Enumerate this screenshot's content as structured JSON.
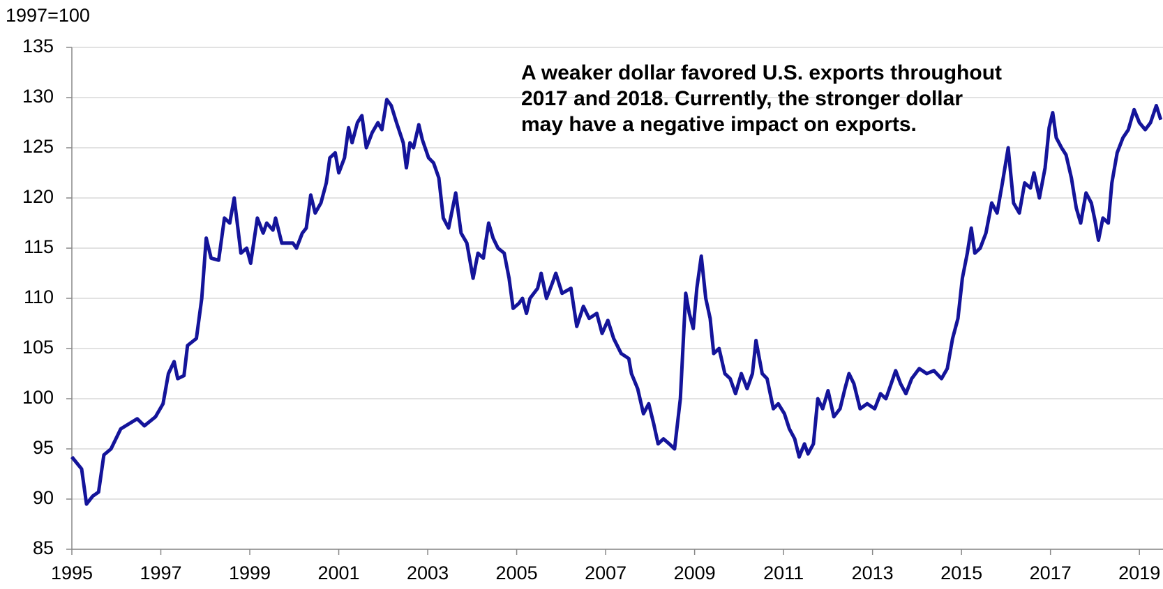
{
  "chart_data": {
    "type": "line",
    "y_axis_label": "1997=100",
    "annotation": "A weaker dollar favored U.S. exports throughout 2017 and 2018. Currently, the stronger dollar may have a negative impact on exports.",
    "color": "#14149a",
    "grid": true,
    "xlim": [
      1995,
      2019.53
    ],
    "ylim": [
      85,
      135
    ],
    "xticks": [
      1995,
      1997,
      1999,
      2001,
      2003,
      2005,
      2007,
      2009,
      2011,
      2013,
      2015,
      2017,
      2019
    ],
    "yticks": [
      85,
      90,
      95,
      100,
      105,
      110,
      115,
      120,
      125,
      130,
      135
    ],
    "x": [
      1995.0,
      1995.22,
      1995.33,
      1995.47,
      1995.6,
      1995.72,
      1995.88,
      1996.1,
      1996.47,
      1996.63,
      1996.88,
      1997.05,
      1997.17,
      1997.3,
      1997.38,
      1997.52,
      1997.6,
      1997.8,
      1997.92,
      1998.02,
      1998.13,
      1998.3,
      1998.43,
      1998.55,
      1998.65,
      1998.8,
      1998.93,
      1999.02,
      1999.17,
      1999.3,
      1999.38,
      1999.52,
      1999.58,
      1999.72,
      1999.97,
      2000.05,
      2000.18,
      2000.27,
      2000.37,
      2000.47,
      2000.6,
      2000.72,
      2000.8,
      2000.92,
      2001.0,
      2001.13,
      2001.22,
      2001.3,
      2001.42,
      2001.52,
      2001.62,
      2001.75,
      2001.88,
      2001.97,
      2002.08,
      2002.18,
      2002.3,
      2002.45,
      2002.52,
      2002.6,
      2002.68,
      2002.8,
      2002.88,
      2003.02,
      2003.13,
      2003.25,
      2003.35,
      2003.47,
      2003.63,
      2003.75,
      2003.88,
      2004.02,
      2004.13,
      2004.25,
      2004.37,
      2004.47,
      2004.58,
      2004.72,
      2004.83,
      2004.92,
      2005.05,
      2005.13,
      2005.22,
      2005.3,
      2005.47,
      2005.55,
      2005.67,
      2005.8,
      2005.88,
      2006.02,
      2006.22,
      2006.35,
      2006.5,
      2006.63,
      2006.8,
      2006.92,
      2007.05,
      2007.18,
      2007.35,
      2007.52,
      2007.58,
      2007.72,
      2007.85,
      2007.97,
      2008.08,
      2008.18,
      2008.3,
      2008.43,
      2008.55,
      2008.68,
      2008.8,
      2008.88,
      2008.97,
      2009.05,
      2009.15,
      2009.25,
      2009.35,
      2009.43,
      2009.55,
      2009.68,
      2009.8,
      2009.92,
      2010.05,
      2010.18,
      2010.3,
      2010.38,
      2010.52,
      2010.63,
      2010.77,
      2010.88,
      2011.02,
      2011.13,
      2011.25,
      2011.35,
      2011.47,
      2011.55,
      2011.67,
      2011.77,
      2011.88,
      2012.0,
      2012.13,
      2012.27,
      2012.38,
      2012.47,
      2012.58,
      2012.72,
      2012.88,
      2013.05,
      2013.18,
      2013.3,
      2013.42,
      2013.52,
      2013.63,
      2013.75,
      2013.88,
      2014.05,
      2014.22,
      2014.38,
      2014.55,
      2014.68,
      2014.8,
      2014.92,
      2015.02,
      2015.13,
      2015.22,
      2015.3,
      2015.42,
      2015.55,
      2015.68,
      2015.8,
      2015.92,
      2016.05,
      2016.17,
      2016.3,
      2016.42,
      2016.55,
      2016.63,
      2016.75,
      2016.88,
      2016.97,
      2017.05,
      2017.13,
      2017.25,
      2017.35,
      2017.47,
      2017.58,
      2017.68,
      2017.8,
      2017.92,
      2018.0,
      2018.08,
      2018.18,
      2018.3,
      2018.38,
      2018.5,
      2018.63,
      2018.75,
      2018.88,
      2019.0,
      2019.13,
      2019.25,
      2019.38,
      2019.48
    ],
    "values": [
      94.2,
      93,
      89.5,
      90.3,
      90.7,
      94.4,
      95,
      97,
      98,
      97.3,
      98.2,
      99.5,
      102.5,
      103.7,
      102,
      102.3,
      105.3,
      106,
      110,
      116,
      114,
      113.8,
      118,
      117.5,
      120,
      114.5,
      115,
      113.5,
      118,
      116.5,
      117.5,
      116.8,
      118,
      115.5,
      115.5,
      115,
      116.5,
      117,
      120.3,
      118.5,
      119.5,
      121.5,
      124,
      124.5,
      122.5,
      124,
      127,
      125.5,
      127.5,
      128.2,
      125,
      126.5,
      127.5,
      126.8,
      129.8,
      129.2,
      127.5,
      125.5,
      123,
      125.5,
      125,
      127.3,
      125.8,
      124,
      123.5,
      122,
      118,
      117,
      120.5,
      116.5,
      115.5,
      112,
      114.5,
      114,
      117.5,
      116,
      115,
      114.5,
      112,
      109,
      109.5,
      110,
      108.5,
      110,
      111,
      112.5,
      110,
      111.5,
      112.5,
      110.5,
      111,
      107.2,
      109.2,
      108,
      108.5,
      106.5,
      107.8,
      106,
      104.5,
      104,
      102.5,
      101,
      98.5,
      99.5,
      97.5,
      95.5,
      96,
      95.5,
      95,
      100,
      110.5,
      108.5,
      107,
      111,
      114.2,
      110,
      108,
      104.5,
      105,
      102.5,
      102,
      100.5,
      102.5,
      101,
      102.5,
      105.8,
      102.5,
      102,
      99,
      99.5,
      98.5,
      97,
      96,
      94.2,
      95.5,
      94.5,
      95.5,
      100,
      99,
      100.8,
      98.2,
      99,
      101,
      102.5,
      101.5,
      99,
      99.5,
      99,
      100.5,
      100,
      101.5,
      102.8,
      101.5,
      100.5,
      102,
      103,
      102.5,
      102.8,
      102,
      103,
      106,
      108,
      112,
      114.5,
      117,
      114.5,
      115,
      116.5,
      119.5,
      118.5,
      121.5,
      125,
      119.5,
      118.5,
      121.5,
      121,
      122.5,
      120,
      123,
      127,
      128.5,
      126,
      125,
      124.3,
      122,
      119,
      117.5,
      120.5,
      119.5,
      117.8,
      115.8,
      118,
      117.5,
      121.5,
      124.5,
      126,
      126.8,
      128.8,
      127.5,
      126.8,
      127.5,
      129.2,
      127.8
    ]
  }
}
